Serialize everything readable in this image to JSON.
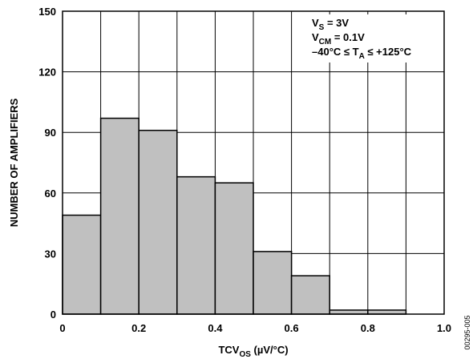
{
  "chart_data": {
    "type": "bar",
    "title": "",
    "xlabel": "TCV",
    "xlabel_sub": "OS",
    "xlabel_units": " (µV/°C)",
    "ylabel": "NUMBER OF AMPLIFIERS",
    "xlim": [
      0,
      1.0
    ],
    "ylim": [
      0,
      150
    ],
    "x_ticks": [
      "0",
      "0.2",
      "0.4",
      "0.6",
      "0.8",
      "1.0"
    ],
    "y_ticks": [
      "0",
      "30",
      "60",
      "90",
      "120",
      "150"
    ],
    "grid": true,
    "bins": [
      {
        "x0": 0.0,
        "x1": 0.1,
        "value": 49
      },
      {
        "x0": 0.1,
        "x1": 0.2,
        "value": 97
      },
      {
        "x0": 0.2,
        "x1": 0.3,
        "value": 91
      },
      {
        "x0": 0.3,
        "x1": 0.4,
        "value": 68
      },
      {
        "x0": 0.4,
        "x1": 0.5,
        "value": 65
      },
      {
        "x0": 0.5,
        "x1": 0.6,
        "value": 31
      },
      {
        "x0": 0.6,
        "x1": 0.7,
        "value": 19
      },
      {
        "x0": 0.7,
        "x1": 0.8,
        "value": 2
      },
      {
        "x0": 0.8,
        "x1": 0.9,
        "value": 2
      }
    ],
    "bar_color": "#c0c0c0",
    "conditions": [
      {
        "main": "V",
        "sub": "S",
        "rest": " = 3V"
      },
      {
        "main": "V",
        "sub": "CM",
        "rest": " = 0.1V"
      },
      {
        "main": "–40°C ≤ T",
        "sub": "A",
        "rest": " ≤ +125°C"
      }
    ],
    "legend_position": "top-right",
    "figure_id": "00295-005"
  }
}
